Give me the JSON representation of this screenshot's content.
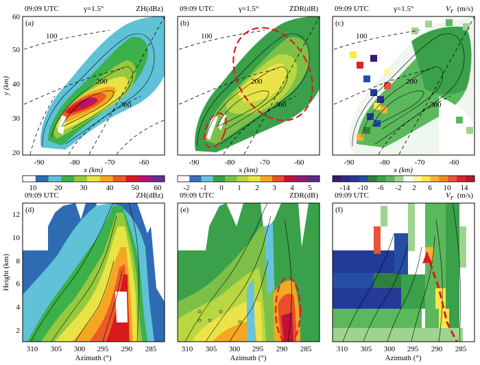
{
  "chart_data": [
    {
      "type": "heatmap",
      "panel": "(a)",
      "time": "09:09 UTC",
      "elevation": "γ=1.5°",
      "variable": "ZH(dBz)",
      "xlabel": "x (km)",
      "ylabel": "y (km)",
      "xlim": [
        -95,
        -55
      ],
      "ylim": [
        20,
        60
      ],
      "xticks": [
        "-90",
        "-80",
        "-70",
        "-60"
      ],
      "yticks": [
        "20",
        "30",
        "40",
        "50",
        "60"
      ],
      "range_ring_labels": [
        "100",
        "200",
        "300"
      ]
    },
    {
      "type": "heatmap",
      "panel": "(b)",
      "time": "09:09 UTC",
      "elevation": "γ=1.5°",
      "variable": "ZDR(dB)",
      "xlabel": "x (km)",
      "xlim": [
        -95,
        -55
      ],
      "ylim": [
        20,
        60
      ],
      "xticks": [
        "-90",
        "-80",
        "-70",
        "-60"
      ],
      "range_ring_labels": [
        "100",
        "200",
        "300"
      ]
    },
    {
      "type": "heatmap",
      "panel": "(c)",
      "time": "09:09 UTC",
      "elevation": "γ=1.5°",
      "variable": "V",
      "variable_sub": "r",
      "unit": "(m/s)",
      "xlabel": "x (km)",
      "xlim": [
        -95,
        -55
      ],
      "ylim": [
        20,
        60
      ],
      "xticks": [
        "-90",
        "-80",
        "-70",
        "-60"
      ],
      "range_ring_labels": [
        "100",
        "200",
        "300"
      ]
    },
    {
      "type": "heatmap",
      "panel": "(d)",
      "time": "09:09 UTC",
      "variable": "ZH(dBz)",
      "xlabel": "Azimuth (°)",
      "ylabel": "Height (km)",
      "xlim": [
        313,
        283
      ],
      "ylim": [
        1,
        13
      ],
      "xticks": [
        "310",
        "305",
        "300",
        "295",
        "290",
        "285"
      ],
      "yticks": [
        "2",
        "4",
        "6",
        "8",
        "10",
        "12"
      ]
    },
    {
      "type": "heatmap",
      "panel": "(e)",
      "time": "09:09 UTC",
      "variable": "ZDR(dB)",
      "xlabel": "Azimuth (°)",
      "xlim": [
        313,
        283
      ],
      "ylim": [
        1,
        13
      ],
      "xticks": [
        "310",
        "305",
        "300",
        "295",
        "290",
        "285"
      ]
    },
    {
      "type": "heatmap",
      "panel": "(f)",
      "time": "09:09 UTC",
      "variable": "V",
      "variable_sub": "r",
      "unit": "(m/s)",
      "xlabel": "Azimuth (°)",
      "xlim": [
        313,
        283
      ],
      "ylim": [
        1,
        13
      ],
      "xticks": [
        "310",
        "305",
        "300",
        "295",
        "290",
        "285"
      ]
    }
  ],
  "colorbars": [
    {
      "variable": "ZH",
      "labels": [
        "10",
        "20",
        "30",
        "40",
        "50",
        "60"
      ],
      "colors": [
        "#ffffff",
        "#2f6bb3",
        "#5fc2d6",
        "#3cb04b",
        "#96c93d",
        "#e9e345",
        "#f5a623",
        "#ec5a2a",
        "#d7191c",
        "#b2127a",
        "#6a2c91"
      ]
    },
    {
      "variable": "ZDR",
      "labels": [
        "-2",
        "-1",
        "0",
        "1",
        "2",
        "3",
        "4",
        "5"
      ],
      "colors": [
        "#ffffff",
        "#3a6fb5",
        "#69c3de",
        "#3aa14a",
        "#7cc04a",
        "#b9d742",
        "#eae44a",
        "#f5a623",
        "#e84e2a",
        "#c2123a",
        "#8c1f76",
        "#5b2a86"
      ]
    },
    {
      "variable": "Vr",
      "labels": [
        "-14",
        "-10",
        "-6",
        "-2",
        "2",
        "6",
        "10",
        "14"
      ],
      "colors": [
        "#3a1c71",
        "#2c2e8c",
        "#233a98",
        "#244ea3",
        "#2f7f3e",
        "#3aa14a",
        "#5cb85c",
        "#9fd38f",
        "#ffffff",
        "#fff4a8",
        "#fde74c",
        "#f9b233",
        "#f08a24",
        "#e8533a",
        "#d7262b",
        "#b2182b"
      ]
    }
  ]
}
